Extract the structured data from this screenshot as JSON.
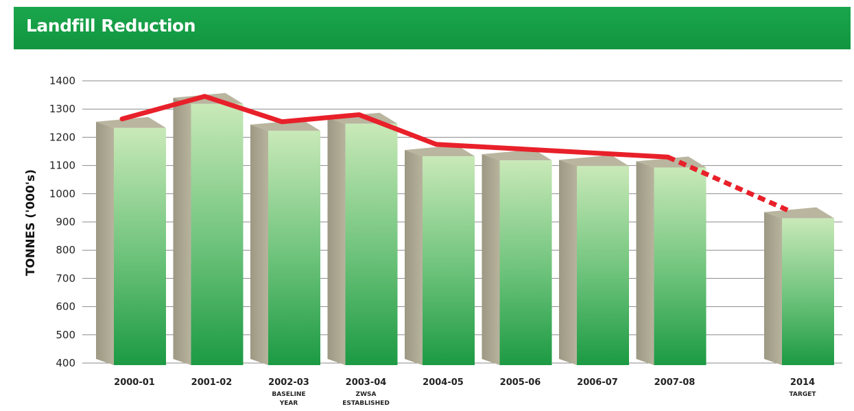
{
  "title": "Landfill Reduction",
  "chart_data": {
    "type": "bar",
    "title": "Landfill Reduction",
    "ylabel": "TONNES ('000's)",
    "xlabel": "",
    "ylim": [
      400,
      1400
    ],
    "yticks": [
      400,
      500,
      600,
      700,
      800,
      900,
      1000,
      1100,
      1200,
      1300,
      1400
    ],
    "grid": true,
    "categories": [
      "2000-01",
      "2001-02",
      "2002-03",
      "2003-04",
      "2004-05",
      "2005-06",
      "2006-07",
      "2007-08",
      "2014"
    ],
    "category_sublabels": [
      "",
      "",
      "BASELINE YEAR",
      "ZWSA ESTABLISHED",
      "",
      "",
      "",
      "",
      "TARGET"
    ],
    "values": [
      1250,
      1335,
      1240,
      1265,
      1150,
      1135,
      1115,
      1110,
      930
    ],
    "trend_line": {
      "values": [
        1265,
        1345,
        1255,
        1280,
        1175,
        1160,
        1145,
        1130,
        940
      ],
      "dashed_from_index": 7,
      "color": "#e8202a"
    },
    "colors": {
      "bar_light": "#c7e8b5",
      "bar_dark": "#1f9e45",
      "bar_side": "#a9a48f",
      "title_bar": "#16a34a"
    }
  }
}
